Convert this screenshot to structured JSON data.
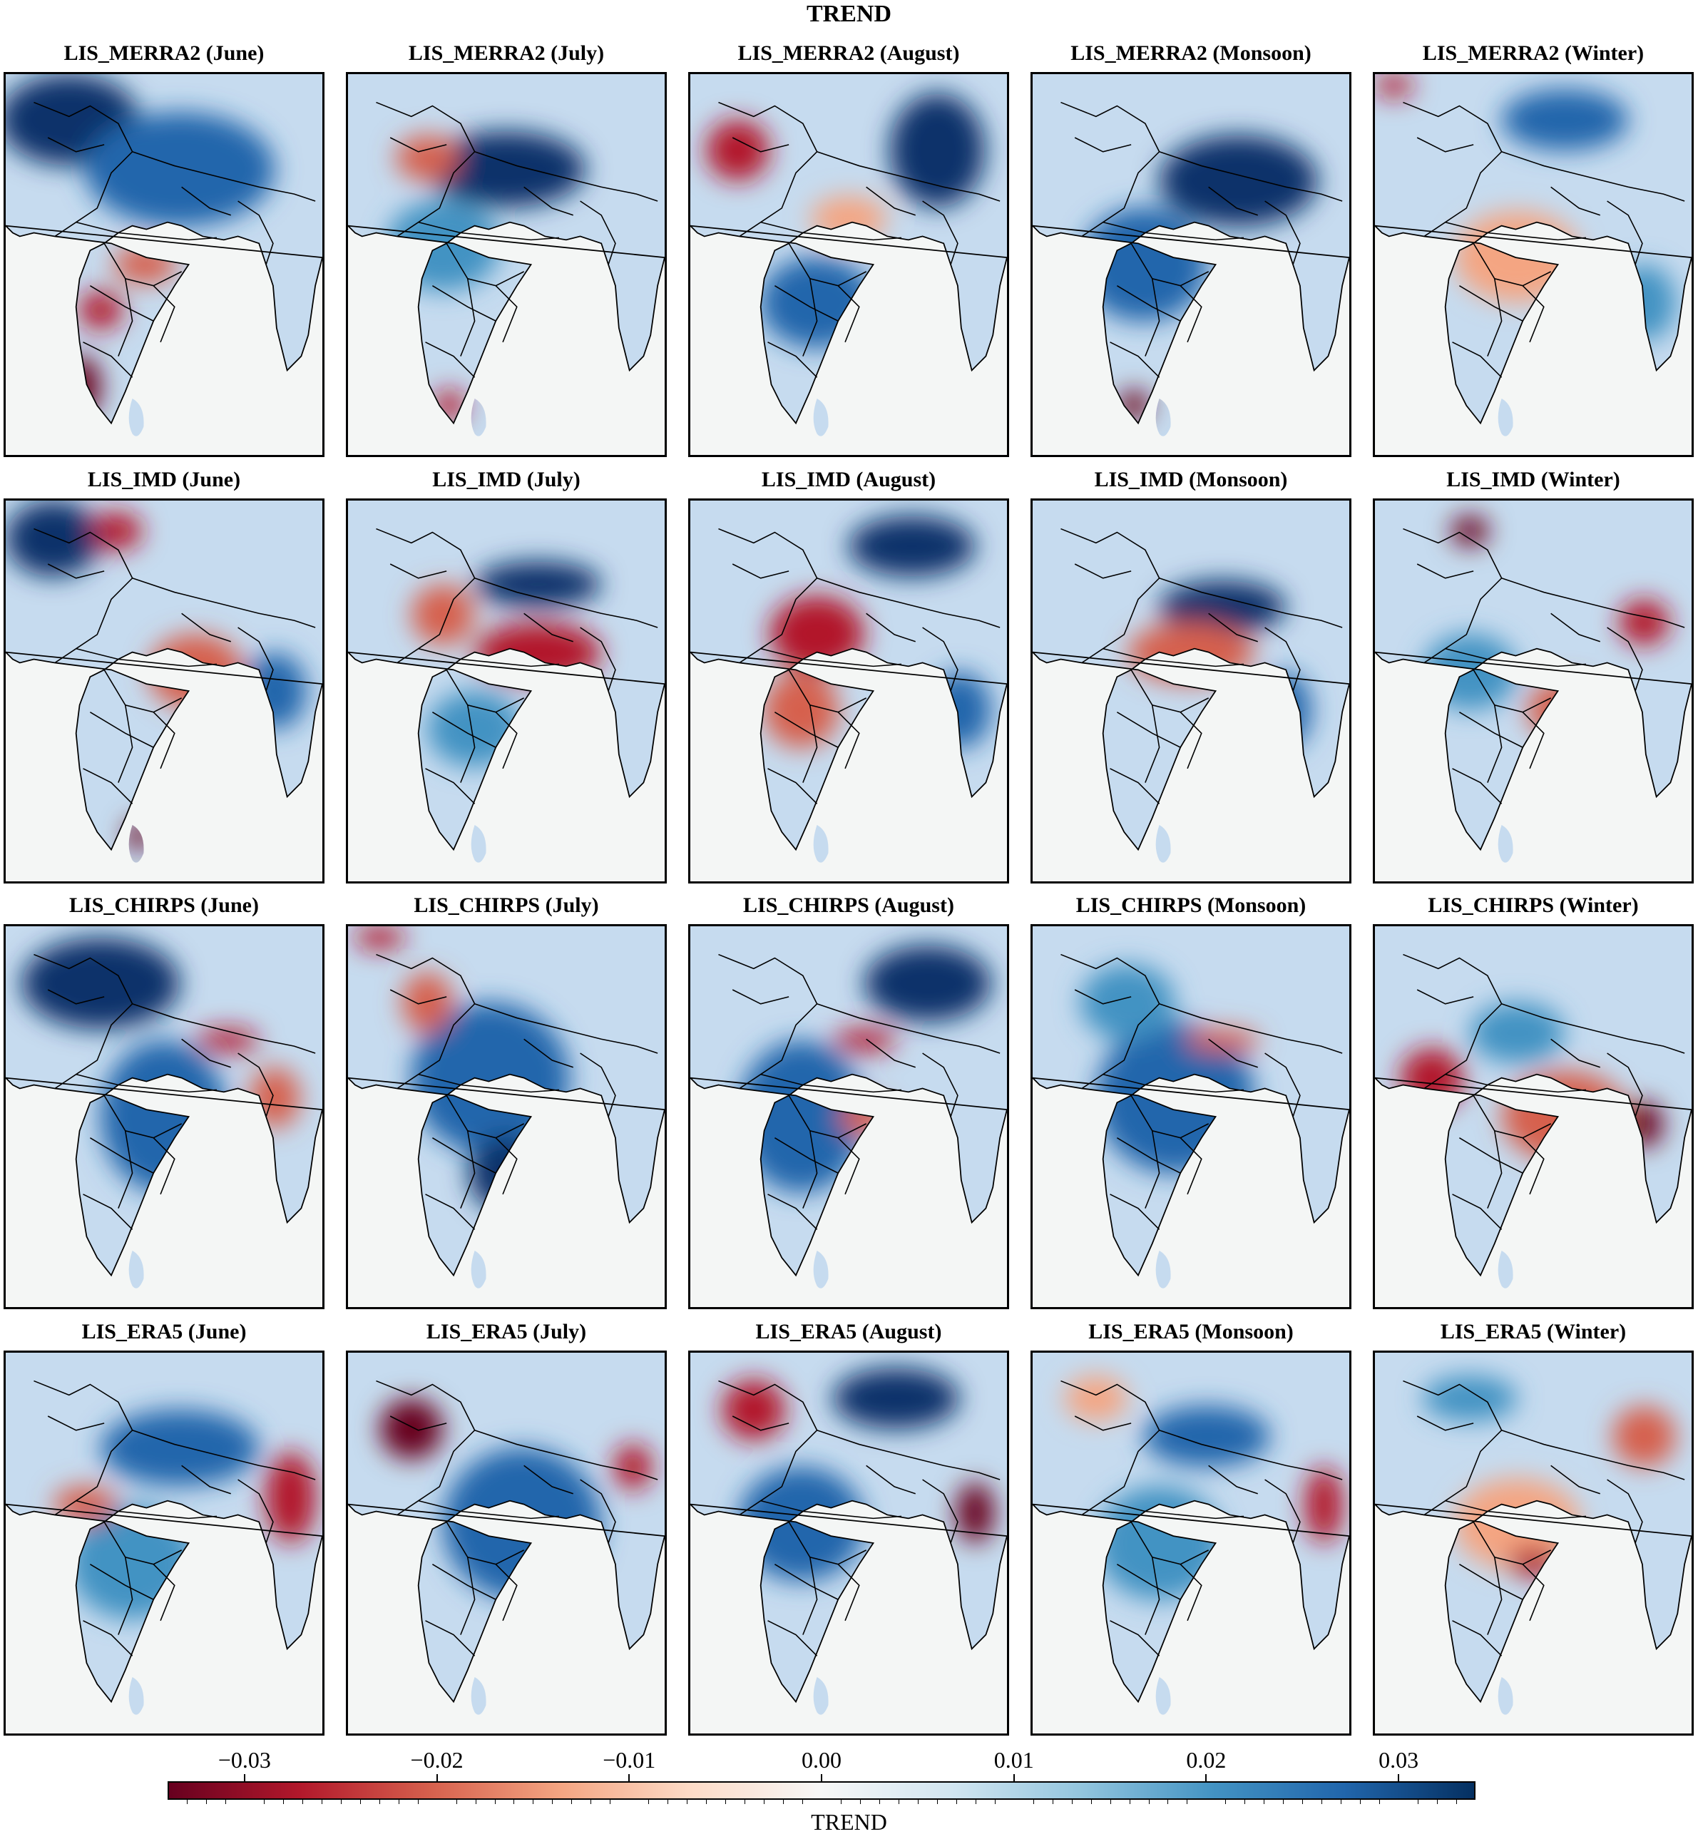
{
  "figure": {
    "title": "TREND",
    "rows": [
      {
        "dataset": "LIS_MERRA2",
        "panels": [
          {
            "label": "LIS_MERRA2 (June)",
            "blobs": [
              [
                "#08306b",
                0.2,
                0.12,
                0.22,
                0.12
              ],
              [
                "#2166ac",
                0.55,
                0.25,
                0.3,
                0.15
              ],
              [
                "#b2182b",
                0.3,
                0.62,
                0.07,
                0.05
              ],
              [
                "#67001f",
                0.24,
                0.82,
                0.06,
                0.08
              ],
              [
                "#d6604d",
                0.44,
                0.5,
                0.1,
                0.05
              ]
            ]
          },
          {
            "label": "LIS_MERRA2 (July)",
            "blobs": [
              [
                "#08306b",
                0.5,
                0.25,
                0.25,
                0.1
              ],
              [
                "#4393c3",
                0.3,
                0.45,
                0.18,
                0.12
              ],
              [
                "#d6604d",
                0.25,
                0.22,
                0.1,
                0.06
              ],
              [
                "#b2182b",
                0.32,
                0.87,
                0.05,
                0.04
              ]
            ]
          },
          {
            "label": "LIS_MERRA2 (August)",
            "blobs": [
              [
                "#b2182b",
                0.15,
                0.2,
                0.1,
                0.08
              ],
              [
                "#08306b",
                0.78,
                0.2,
                0.15,
                0.15
              ],
              [
                "#2166ac",
                0.4,
                0.6,
                0.18,
                0.12
              ],
              [
                "#f4a582",
                0.5,
                0.38,
                0.12,
                0.06
              ]
            ]
          },
          {
            "label": "LIS_MERRA2 (Monsoon)",
            "blobs": [
              [
                "#08306b",
                0.65,
                0.28,
                0.25,
                0.12
              ],
              [
                "#2166ac",
                0.35,
                0.5,
                0.2,
                0.15
              ],
              [
                "#67001f",
                0.32,
                0.87,
                0.05,
                0.04
              ]
            ]
          },
          {
            "label": "LIS_MERRA2 (Winter)",
            "blobs": [
              [
                "#f4a582",
                0.45,
                0.48,
                0.2,
                0.12
              ],
              [
                "#2166ac",
                0.6,
                0.12,
                0.2,
                0.08
              ],
              [
                "#b2182b",
                0.06,
                0.03,
                0.06,
                0.03
              ],
              [
                "#4393c3",
                0.85,
                0.6,
                0.1,
                0.1
              ]
            ]
          }
        ]
      },
      {
        "dataset": "LIS_IMD",
        "panels": [
          {
            "label": "LIS_IMD (June)",
            "blobs": [
              [
                "#08306b",
                0.15,
                0.1,
                0.15,
                0.1
              ],
              [
                "#b2182b",
                0.35,
                0.08,
                0.08,
                0.05
              ],
              [
                "#d6604d",
                0.6,
                0.45,
                0.15,
                0.1
              ],
              [
                "#2166ac",
                0.85,
                0.5,
                0.1,
                0.1
              ],
              [
                "#67001f",
                0.42,
                0.88,
                0.04,
                0.04
              ]
            ]
          },
          {
            "label": "LIS_IMD (July)",
            "blobs": [
              [
                "#b2182b",
                0.6,
                0.4,
                0.2,
                0.08
              ],
              [
                "#08306b",
                0.6,
                0.22,
                0.2,
                0.06
              ],
              [
                "#d6604d",
                0.3,
                0.3,
                0.1,
                0.08
              ],
              [
                "#4393c3",
                0.4,
                0.6,
                0.15,
                0.1
              ]
            ]
          },
          {
            "label": "LIS_IMD (August)",
            "blobs": [
              [
                "#b2182b",
                0.4,
                0.35,
                0.15,
                0.1
              ],
              [
                "#08306b",
                0.7,
                0.12,
                0.2,
                0.08
              ],
              [
                "#2166ac",
                0.85,
                0.55,
                0.1,
                0.1
              ],
              [
                "#d6604d",
                0.35,
                0.55,
                0.12,
                0.1
              ]
            ]
          },
          {
            "label": "LIS_IMD (Monsoon)",
            "blobs": [
              [
                "#08306b",
                0.6,
                0.28,
                0.2,
                0.07
              ],
              [
                "#d6604d",
                0.5,
                0.4,
                0.2,
                0.08
              ],
              [
                "#2166ac",
                0.8,
                0.55,
                0.08,
                0.1
              ]
            ]
          },
          {
            "label": "LIS_IMD (Winter)",
            "blobs": [
              [
                "#67001f",
                0.3,
                0.08,
                0.06,
                0.04
              ],
              [
                "#b2182b",
                0.85,
                0.32,
                0.08,
                0.06
              ],
              [
                "#4393c3",
                0.3,
                0.45,
                0.15,
                0.1
              ],
              [
                "#d6604d",
                0.6,
                0.55,
                0.12,
                0.08
              ]
            ]
          }
        ]
      },
      {
        "dataset": "LIS_CHIRPS",
        "panels": [
          {
            "label": "LIS_CHIRPS (June)",
            "blobs": [
              [
                "#08306b",
                0.3,
                0.15,
                0.25,
                0.12
              ],
              [
                "#2166ac",
                0.5,
                0.5,
                0.2,
                0.2
              ],
              [
                "#b2182b",
                0.7,
                0.3,
                0.1,
                0.03
              ],
              [
                "#d6604d",
                0.85,
                0.45,
                0.08,
                0.08
              ]
            ]
          },
          {
            "label": "LIS_CHIRPS (July)",
            "blobs": [
              [
                "#2166ac",
                0.45,
                0.4,
                0.25,
                0.2
              ],
              [
                "#d6604d",
                0.25,
                0.2,
                0.08,
                0.08
              ],
              [
                "#b2182b",
                0.1,
                0.03,
                0.08,
                0.03
              ],
              [
                "#08306b",
                0.5,
                0.65,
                0.12,
                0.1
              ]
            ]
          },
          {
            "label": "LIS_CHIRPS (August)",
            "blobs": [
              [
                "#08306b",
                0.75,
                0.15,
                0.2,
                0.1
              ],
              [
                "#2166ac",
                0.35,
                0.5,
                0.2,
                0.2
              ],
              [
                "#b2182b",
                0.55,
                0.3,
                0.1,
                0.03
              ],
              [
                "#d6604d",
                0.55,
                0.5,
                0.08,
                0.05
              ]
            ]
          },
          {
            "label": "LIS_CHIRPS (Monsoon)",
            "blobs": [
              [
                "#2166ac",
                0.45,
                0.45,
                0.25,
                0.2
              ],
              [
                "#d6604d",
                0.6,
                0.3,
                0.12,
                0.03
              ],
              [
                "#4393c3",
                0.3,
                0.2,
                0.15,
                0.1
              ]
            ]
          },
          {
            "label": "LIS_CHIRPS (Winter)",
            "blobs": [
              [
                "#b2182b",
                0.18,
                0.4,
                0.1,
                0.08
              ],
              [
                "#d6604d",
                0.6,
                0.5,
                0.2,
                0.12
              ],
              [
                "#67001f",
                0.85,
                0.52,
                0.06,
                0.06
              ],
              [
                "#4393c3",
                0.45,
                0.28,
                0.15,
                0.08
              ]
            ]
          }
        ]
      },
      {
        "dataset": "LIS_ERA5",
        "panels": [
          {
            "label": "LIS_ERA5 (June)",
            "blobs": [
              [
                "#b2182b",
                0.9,
                0.38,
                0.08,
                0.12
              ],
              [
                "#2166ac",
                0.55,
                0.25,
                0.25,
                0.1
              ],
              [
                "#4393c3",
                0.4,
                0.55,
                0.2,
                0.15
              ],
              [
                "#d6604d",
                0.25,
                0.4,
                0.1,
                0.05
              ]
            ]
          },
          {
            "label": "LIS_ERA5 (July)",
            "blobs": [
              [
                "#67001f",
                0.2,
                0.2,
                0.1,
                0.08
              ],
              [
                "#2166ac",
                0.55,
                0.45,
                0.25,
                0.2
              ],
              [
                "#b2182b",
                0.9,
                0.3,
                0.06,
                0.06
              ]
            ]
          },
          {
            "label": "LIS_ERA5 (August)",
            "blobs": [
              [
                "#08306b",
                0.65,
                0.12,
                0.2,
                0.08
              ],
              [
                "#b2182b",
                0.2,
                0.15,
                0.1,
                0.08
              ],
              [
                "#2166ac",
                0.35,
                0.45,
                0.2,
                0.15
              ],
              [
                "#67001f",
                0.9,
                0.42,
                0.06,
                0.08
              ]
            ]
          },
          {
            "label": "LIS_ERA5 (Monsoon)",
            "blobs": [
              [
                "#b2182b",
                0.92,
                0.4,
                0.06,
                0.1
              ],
              [
                "#2166ac",
                0.55,
                0.22,
                0.2,
                0.08
              ],
              [
                "#4393c3",
                0.4,
                0.5,
                0.2,
                0.15
              ],
              [
                "#f4a582",
                0.2,
                0.12,
                0.1,
                0.06
              ]
            ]
          },
          {
            "label": "LIS_ERA5 (Winter)",
            "blobs": [
              [
                "#d6604d",
                0.85,
                0.22,
                0.1,
                0.08
              ],
              [
                "#f4a582",
                0.45,
                0.45,
                0.2,
                0.12
              ],
              [
                "#4393c3",
                0.3,
                0.12,
                0.15,
                0.06
              ],
              [
                "#b2182b",
                0.5,
                0.55,
                0.08,
                0.04
              ]
            ]
          }
        ]
      }
    ]
  },
  "colorbar": {
    "label": "TREND",
    "ticks": [
      "−0.03",
      "−0.02",
      "−0.01",
      "0.00",
      "0.01",
      "0.02",
      "0.03"
    ],
    "tick_values": [
      -0.03,
      -0.02,
      -0.01,
      0.0,
      0.01,
      0.02,
      0.03
    ],
    "range": [
      -0.034,
      0.034
    ],
    "colormap": [
      "#67001f",
      "#b2182b",
      "#d6604d",
      "#f4a582",
      "#fddbc7",
      "#f7f7f7",
      "#d1e5f0",
      "#92c5de",
      "#4393c3",
      "#2166ac",
      "#053061"
    ]
  }
}
